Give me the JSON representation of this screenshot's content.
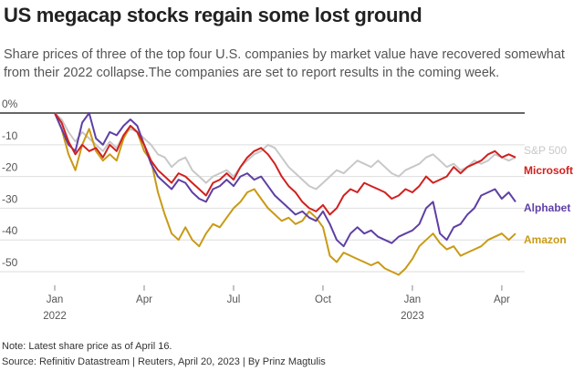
{
  "chart_data": {
    "type": "line",
    "title": "US megacap stocks regain some lost ground",
    "subtitle": "Share prices of three of the top four U.S. companies by market value have recovered somewhat from their 2022 collapse.The companies are set to report results in the coming week.",
    "note": "Note: Latest share price as of April 16.",
    "source": "Source: Refinitiv Datastream | Reuters, April 20, 2023 | By Prinz Magtulis",
    "categories": [
      "Jan\n2022",
      null,
      null,
      null,
      null,
      null,
      null,
      null,
      null,
      null,
      null,
      null,
      null,
      "Apr",
      null,
      null,
      null,
      null,
      null,
      null,
      null,
      null,
      null,
      null,
      null,
      null,
      "Jul",
      null,
      null,
      null,
      null,
      null,
      null,
      null,
      null,
      null,
      null,
      null,
      null,
      "Oct",
      null,
      null,
      null,
      null,
      null,
      null,
      null,
      null,
      null,
      null,
      null,
      null,
      "Jan\n2023",
      null,
      null,
      null,
      null,
      null,
      null,
      null,
      null,
      null,
      null,
      null,
      null,
      "Apr",
      null,
      null
    ],
    "ylim": [
      -54,
      3
    ],
    "yticks": [
      {
        "value": 0,
        "label": "0%"
      },
      -10,
      -20,
      -30,
      -40,
      -50
    ],
    "grid": true,
    "series": [
      {
        "name": "S&P 500",
        "color": "#c8c8c8",
        "values": [
          0,
          -2,
          -6,
          -9,
          -6,
          -8,
          -10,
          -12,
          -9,
          -11,
          -7,
          -5,
          -6,
          -8,
          -10,
          -13,
          -14,
          -17,
          -15,
          -14,
          -18,
          -20,
          -22,
          -20,
          -19,
          -18,
          -20,
          -17,
          -15,
          -13,
          -12,
          -10,
          -11,
          -14,
          -17,
          -19,
          -21,
          -23,
          -24,
          -22,
          -20,
          -18,
          -19,
          -17,
          -15,
          -16,
          -17,
          -15,
          -17,
          -19,
          -20,
          -18,
          -17,
          -16,
          -14,
          -13,
          -15,
          -17,
          -16,
          -18,
          -17,
          -15,
          -16,
          -15,
          -13,
          -14,
          -15,
          -14
        ]
      },
      {
        "name": "Amazon",
        "color": "#c99a14",
        "values": [
          0,
          -5,
          -13,
          -18,
          -10,
          -5,
          -12,
          -15,
          -13,
          -15,
          -8,
          -4,
          -6,
          -12,
          -15,
          -25,
          -32,
          -38,
          -40,
          -36,
          -40,
          -42,
          -38,
          -35,
          -36,
          -33,
          -30,
          -28,
          -25,
          -24,
          -27,
          -30,
          -32,
          -34,
          -33,
          -35,
          -34,
          -31,
          -33,
          -36,
          -45,
          -47,
          -44,
          -45,
          -46,
          -47,
          -48,
          -47,
          -49,
          -50,
          -51,
          -49,
          -46,
          -42,
          -40,
          -38,
          -41,
          -43,
          -42,
          -45,
          -44,
          -43,
          -42,
          -40,
          -39,
          -38,
          -40,
          -38
        ]
      },
      {
        "name": "Alphabet",
        "color": "#5e3fa5",
        "values": [
          0,
          -5,
          -10,
          -12,
          -3,
          0,
          -8,
          -10,
          -6,
          -7,
          -4,
          -2,
          -4,
          -10,
          -16,
          -20,
          -22,
          -24,
          -21,
          -22,
          -25,
          -27,
          -28,
          -24,
          -23,
          -21,
          -23,
          -20,
          -19,
          -21,
          -20,
          -23,
          -26,
          -28,
          -30,
          -32,
          -31,
          -33,
          -34,
          -31,
          -35,
          -40,
          -42,
          -38,
          -36,
          -38,
          -37,
          -39,
          -40,
          -41,
          -39,
          -38,
          -37,
          -35,
          -30,
          -28,
          -38,
          -40,
          -36,
          -35,
          -32,
          -30,
          -26,
          -25,
          -24,
          -27,
          -25,
          -28
        ]
      },
      {
        "name": "Microsoft",
        "color": "#d0211f",
        "values": [
          0,
          -3,
          -9,
          -13,
          -10,
          -12,
          -11,
          -14,
          -10,
          -12,
          -7,
          -4,
          -6,
          -10,
          -15,
          -18,
          -20,
          -22,
          -19,
          -20,
          -22,
          -24,
          -26,
          -22,
          -21,
          -19,
          -21,
          -17,
          -14,
          -12,
          -11,
          -13,
          -16,
          -20,
          -23,
          -25,
          -28,
          -30,
          -31,
          -29,
          -32,
          -30,
          -26,
          -24,
          -25,
          -22,
          -23,
          -24,
          -25,
          -27,
          -26,
          -24,
          -25,
          -23,
          -20,
          -22,
          -21,
          -20,
          -17,
          -19,
          -17,
          -16,
          -15,
          -13,
          -12,
          -14,
          -13,
          -14
        ]
      }
    ]
  }
}
